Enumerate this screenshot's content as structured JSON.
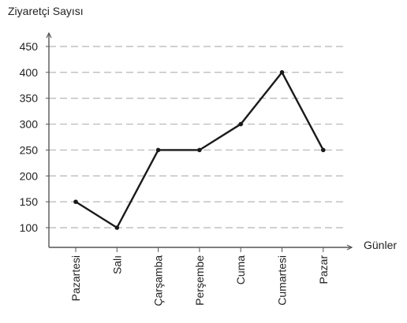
{
  "chart_data": {
    "type": "line",
    "title": "",
    "ylabel": "Ziyaretçi Sayısı",
    "xlabel": "Günler",
    "categories": [
      "Pazartesi",
      "Salı",
      "Çarşamba",
      "Perşembe",
      "Cuma",
      "Cumartesi",
      "Pazar"
    ],
    "series": [
      {
        "values": [
          150,
          100,
          250,
          250,
          300,
          400,
          250
        ]
      }
    ],
    "yticks": [
      100,
      150,
      200,
      250,
      300,
      350,
      400,
      450
    ],
    "ylim": [
      75,
      475
    ],
    "grid": true,
    "grid_style": "dashed-horizontal",
    "line_color": "#1a1a1a",
    "grid_color": "#b5b5b5",
    "axis_color": "#555555"
  }
}
